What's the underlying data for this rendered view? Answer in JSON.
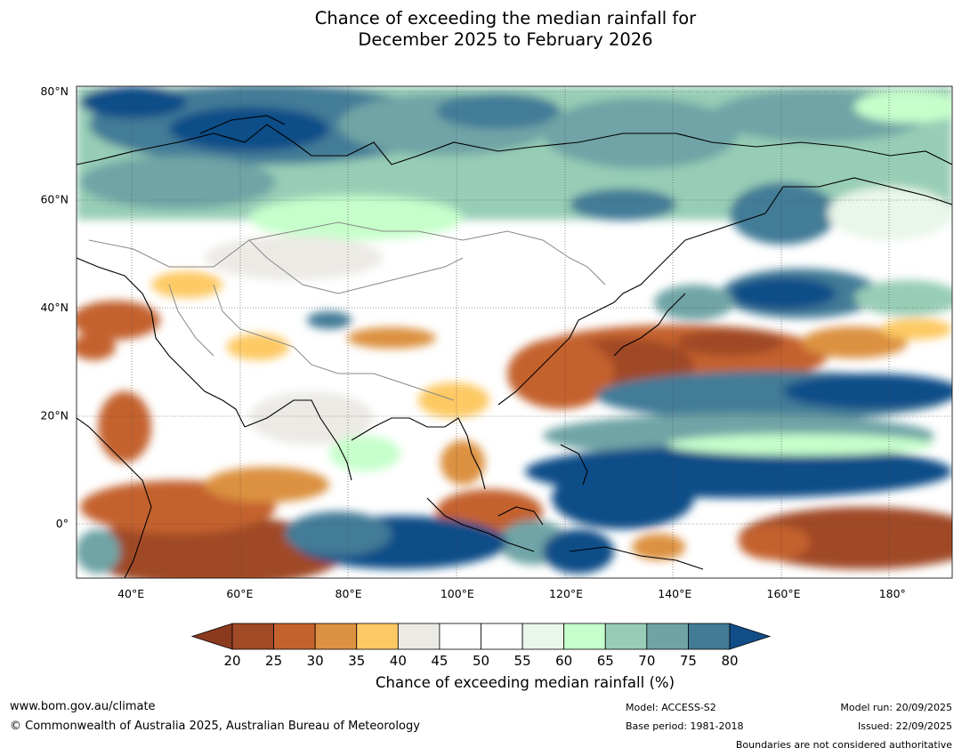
{
  "title": {
    "line1": "Chance of exceeding the median rainfall for",
    "line2": "December 2025 to February 2026"
  },
  "map": {
    "lon_range": [
      30,
      191
    ],
    "lat_range": [
      -10,
      81
    ],
    "lat_ticks": [
      {
        "value": 80,
        "label": "80°N"
      },
      {
        "value": 60,
        "label": "60°N"
      },
      {
        "value": 40,
        "label": "40°N"
      },
      {
        "value": 20,
        "label": "20°N"
      },
      {
        "value": 0,
        "label": "0°"
      }
    ],
    "lon_ticks": [
      {
        "value": 40,
        "label": "40°E"
      },
      {
        "value": 60,
        "label": "60°E"
      },
      {
        "value": 80,
        "label": "80°E"
      },
      {
        "value": 100,
        "label": "100°E"
      },
      {
        "value": 120,
        "label": "120°E"
      },
      {
        "value": 140,
        "label": "140°E"
      },
      {
        "value": 160,
        "label": "160°E"
      },
      {
        "value": 180,
        "label": "180°"
      }
    ]
  },
  "colorbar": {
    "label": "Chance of exceeding median rainfall (%)",
    "tick_labels": [
      "20",
      "25",
      "30",
      "35",
      "40",
      "45",
      "50",
      "55",
      "60",
      "65",
      "70",
      "75",
      "80"
    ],
    "colors": [
      "#a04a26",
      "#c4622e",
      "#dc9141",
      "#fdc964",
      "#eceae5",
      "#ffffff",
      "#ffffff",
      "#e9f6e9",
      "#c6ffcb",
      "#97cdb6",
      "#6fa4a6",
      "#437b97"
    ],
    "under_color": "#8c3a1e",
    "over_color": "#114e88"
  },
  "footer": {
    "url": "www.bom.gov.au/climate",
    "copyright": "© Commonwealth of Australia 2025, Australian Bureau of Meteorology",
    "model": "Model: ACCESS-S2",
    "base_period": "Base period: 1981-2018",
    "model_run": "Model run: 20/09/2025",
    "issued": "Issued: 22/09/2025",
    "boundaries_note": "Boundaries are not considered authoritative"
  }
}
